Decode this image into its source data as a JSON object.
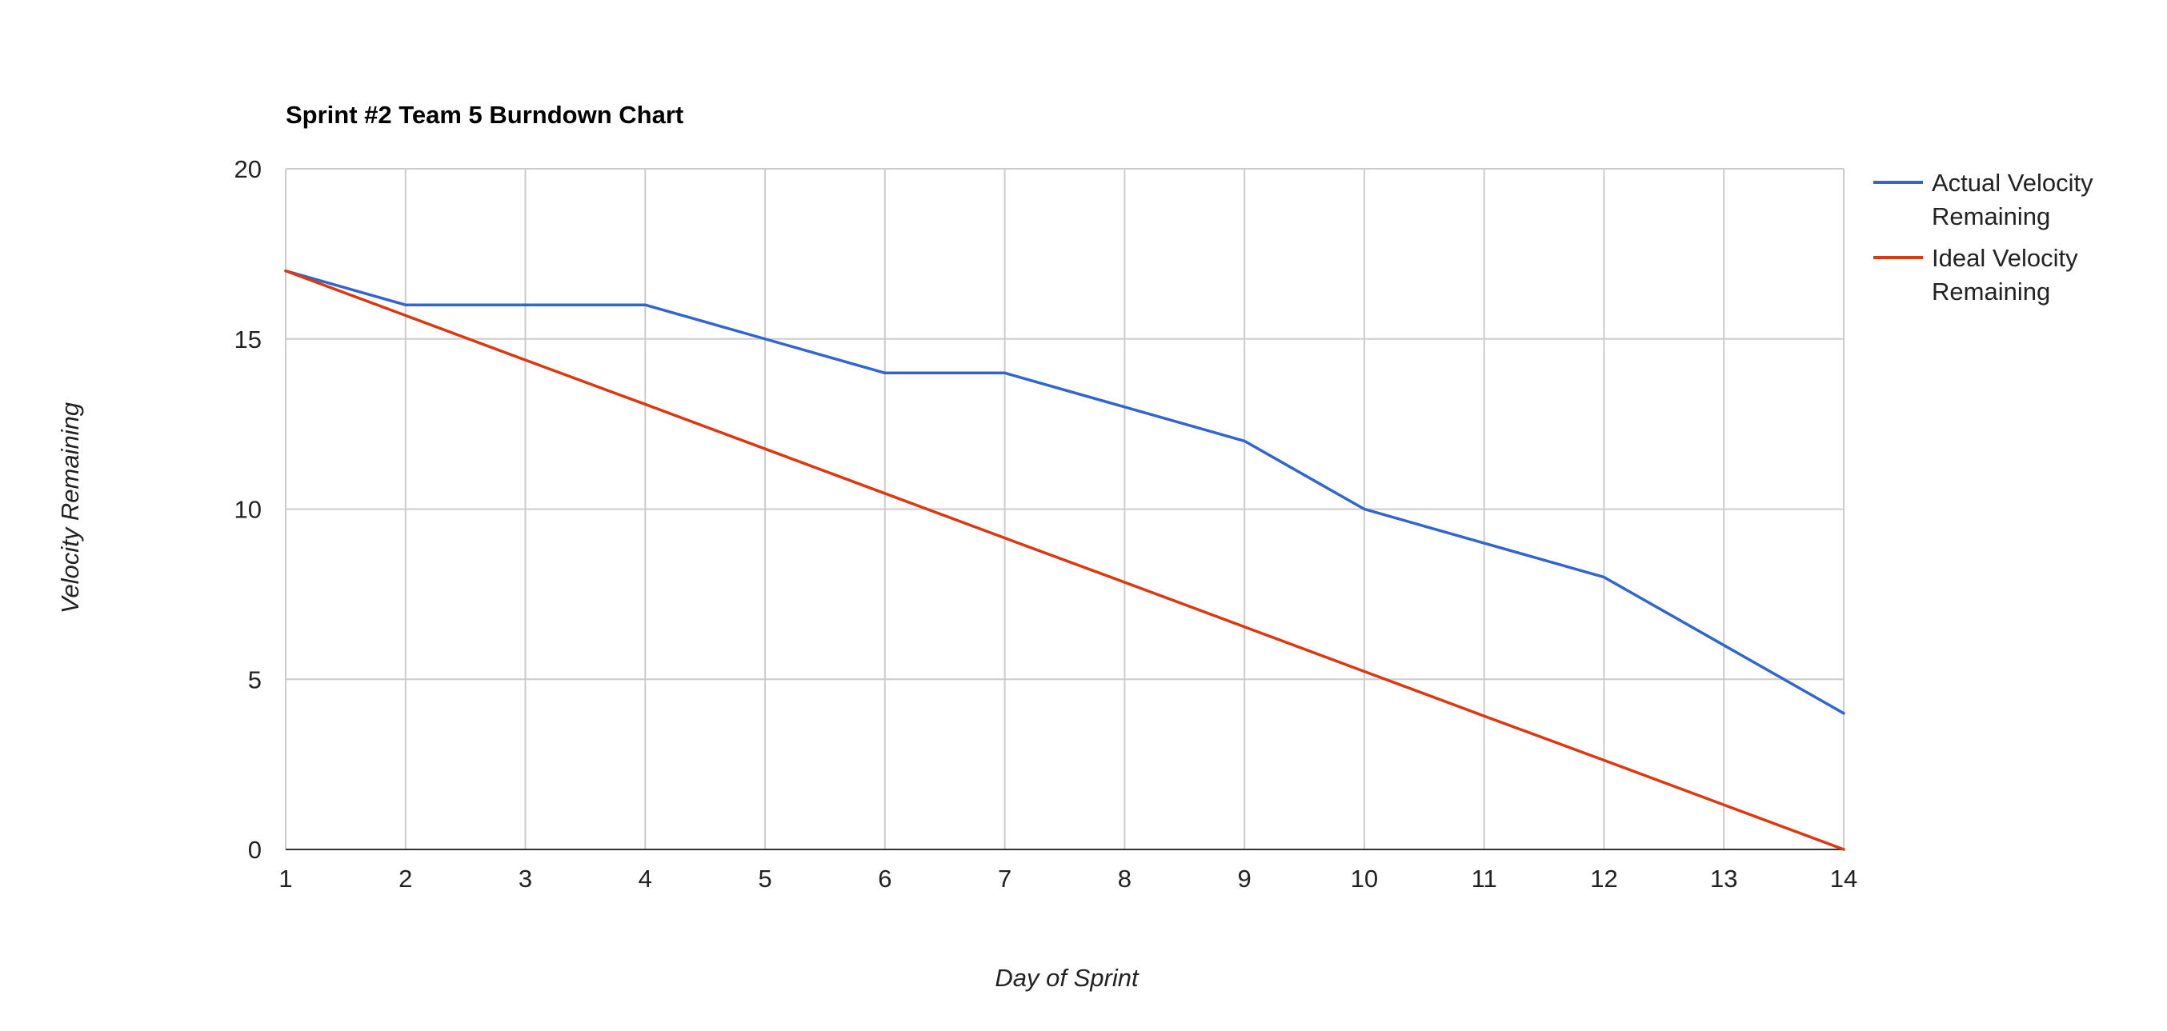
{
  "chart_data": {
    "type": "line",
    "title": "Sprint #2 Team 5 Burndown Chart",
    "xlabel": "Day of Sprint",
    "ylabel": "Velocity Remaining",
    "x": [
      1,
      2,
      3,
      4,
      5,
      6,
      7,
      8,
      9,
      10,
      11,
      12,
      13,
      14
    ],
    "xlim": [
      1,
      14
    ],
    "ylim": [
      0,
      20
    ],
    "y_ticks": [
      0,
      5,
      10,
      15,
      20
    ],
    "grid": true,
    "legend_position": "right",
    "series": [
      {
        "name": "Actual Velocity Remaining",
        "legend_lines": [
          "Actual Velocity",
          "Remaining"
        ],
        "color": "#3366cc",
        "values": [
          17,
          16,
          16,
          16,
          15,
          14,
          14,
          13,
          12,
          10,
          9,
          8,
          6,
          4
        ]
      },
      {
        "name": "Ideal Velocity Remaining",
        "legend_lines": [
          "Ideal Velocity",
          "Remaining"
        ],
        "color": "#dc3912",
        "values": [
          17,
          15.69,
          14.38,
          13.08,
          11.77,
          10.46,
          9.15,
          7.85,
          6.54,
          5.23,
          3.92,
          2.62,
          1.31,
          0
        ]
      }
    ]
  }
}
